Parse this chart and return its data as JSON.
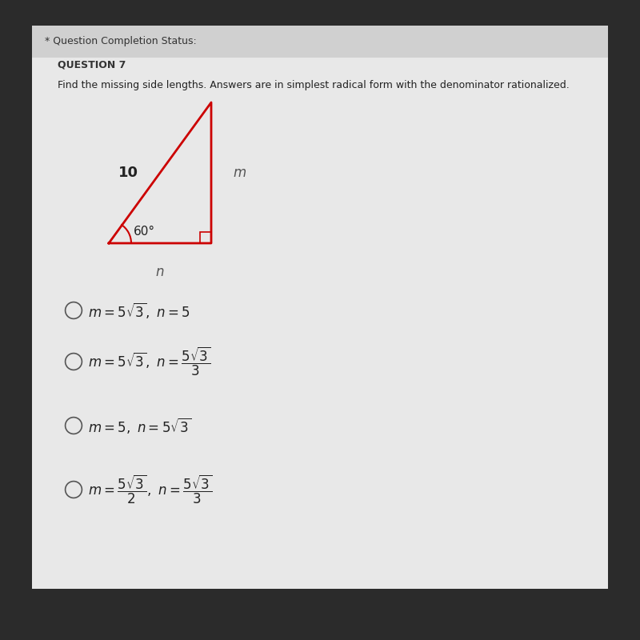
{
  "bg_color": "#2b2b2b",
  "panel_color": "#e8e8e8",
  "title_bar_color": "#d0d0d0",
  "title_bar_text": "* Question Completion Status:",
  "question_label": "QUESTION 7",
  "question_text": "Find the missing side lengths. Answers are in simplest radical form with the denominator rationalized.",
  "triangle_color": "#cc0000",
  "hyp_label": "10",
  "right_side_label": "m",
  "bottom_label": "n",
  "angle_label": "60°",
  "choice1": "$m = 5\\sqrt{3},\\ n = 5$",
  "choice2": "$m = 5\\sqrt{3},\\ n = \\dfrac{5\\sqrt{3}}{3}$",
  "choice3": "$m = 5,\\ n = 5\\sqrt{3}$",
  "choice4": "$m = \\dfrac{5\\sqrt{3}}{2},\\ n = \\dfrac{5\\sqrt{3}}{3}$",
  "text_color": "#222222",
  "circle_color": "#555555"
}
